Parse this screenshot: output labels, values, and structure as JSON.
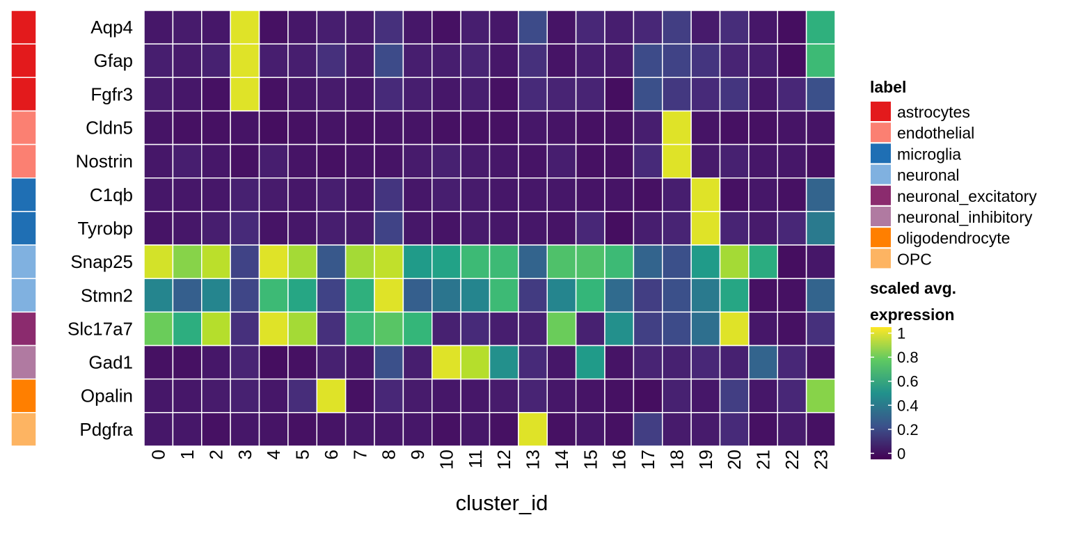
{
  "chart_data": {
    "type": "heatmap",
    "title": "",
    "xlabel": "cluster_id",
    "ylabel": "",
    "x": [
      "0",
      "1",
      "2",
      "3",
      "4",
      "5",
      "6",
      "7",
      "8",
      "9",
      "10",
      "11",
      "12",
      "13",
      "14",
      "15",
      "16",
      "17",
      "18",
      "19",
      "20",
      "21",
      "22",
      "23"
    ],
    "y": [
      "Aqp4",
      "Gfap",
      "Fgfr3",
      "Cldn5",
      "Nostrin",
      "C1qb",
      "Tyrobp",
      "Snap25",
      "Stmn2",
      "Slc17a7",
      "Gad1",
      "Opalin",
      "Pdgfra"
    ],
    "row_labels": [
      "astrocytes",
      "astrocytes",
      "astrocytes",
      "endothelial",
      "endothelial",
      "microglia",
      "microglia",
      "neuronal",
      "neuronal",
      "neuronal_excitatory",
      "neuronal_inhibitory",
      "oligodendrocyte",
      "OPC"
    ],
    "values": [
      [
        0.02,
        0.03,
        0.02,
        1.0,
        0.0,
        0.02,
        0.04,
        0.03,
        0.1,
        0.02,
        0.0,
        0.04,
        0.02,
        0.2,
        0.01,
        0.07,
        0.04,
        0.07,
        0.15,
        0.03,
        0.09,
        0.02,
        -0.01,
        0.65
      ],
      [
        0.04,
        0.03,
        0.05,
        1.0,
        0.04,
        0.04,
        0.1,
        0.03,
        0.2,
        0.04,
        0.04,
        0.06,
        0.02,
        0.1,
        0.01,
        0.04,
        0.03,
        0.2,
        0.17,
        0.12,
        0.06,
        0.04,
        -0.01,
        0.7
      ],
      [
        0.03,
        0.02,
        0.0,
        1.0,
        0.0,
        0.02,
        0.03,
        0.02,
        0.08,
        0.04,
        0.02,
        0.04,
        0.0,
        0.08,
        0.06,
        0.06,
        -0.01,
        0.22,
        0.13,
        0.08,
        0.12,
        0.02,
        0.07,
        0.22
      ],
      [
        0.01,
        0.0,
        0.0,
        0.01,
        -0.01,
        0.0,
        0.01,
        0.0,
        0.01,
        0.01,
        0.0,
        0.0,
        0.0,
        0.02,
        0.01,
        0.0,
        0.0,
        0.04,
        1.0,
        0.01,
        0.0,
        0.0,
        0.01,
        0.01
      ],
      [
        0.02,
        0.04,
        0.02,
        0.0,
        0.04,
        0.01,
        0.0,
        0.01,
        0.01,
        0.03,
        0.05,
        0.03,
        0.02,
        0.01,
        0.04,
        0.0,
        0.0,
        0.08,
        1.0,
        0.03,
        0.05,
        0.02,
        0.02,
        0.0
      ],
      [
        0.02,
        0.02,
        0.02,
        0.05,
        0.03,
        0.02,
        0.04,
        0.02,
        0.12,
        0.02,
        0.04,
        0.03,
        0.02,
        0.02,
        0.02,
        0.01,
        0.01,
        0.0,
        0.04,
        1.0,
        0.0,
        0.02,
        0.0,
        0.3
      ],
      [
        0.01,
        0.02,
        0.04,
        0.08,
        0.01,
        0.02,
        0.04,
        0.03,
        0.17,
        0.02,
        0.01,
        0.03,
        0.02,
        0.02,
        0.01,
        0.07,
        -0.01,
        0.04,
        0.06,
        1.0,
        0.06,
        0.03,
        0.07,
        0.4
      ],
      [
        0.98,
        0.85,
        0.94,
        0.17,
        1.0,
        0.9,
        0.25,
        0.9,
        0.95,
        0.55,
        0.58,
        0.7,
        0.7,
        0.3,
        0.74,
        0.74,
        0.7,
        0.3,
        0.22,
        0.55,
        0.9,
        0.63,
        -0.01,
        0.02
      ],
      [
        0.45,
        0.28,
        0.45,
        0.18,
        0.7,
        0.6,
        0.17,
        0.65,
        1.0,
        0.28,
        0.38,
        0.45,
        0.7,
        0.14,
        0.45,
        0.68,
        0.33,
        0.15,
        0.22,
        0.4,
        0.6,
        0.0,
        0.0,
        0.3
      ],
      [
        0.8,
        0.64,
        0.93,
        0.1,
        1.0,
        0.9,
        0.1,
        0.7,
        0.76,
        0.68,
        0.05,
        0.08,
        0.04,
        0.05,
        0.8,
        0.05,
        0.5,
        0.16,
        0.2,
        0.35,
        1.0,
        0.02,
        0.0,
        0.1
      ],
      [
        0.0,
        0.0,
        0.02,
        0.06,
        -0.01,
        0.0,
        0.05,
        0.02,
        0.22,
        0.04,
        1.0,
        0.93,
        0.5,
        0.08,
        0.02,
        0.55,
        0.01,
        0.06,
        0.05,
        0.07,
        0.05,
        0.3,
        0.07,
        0.01
      ],
      [
        0.02,
        0.02,
        0.03,
        0.05,
        0.02,
        0.09,
        1.0,
        0.0,
        0.07,
        0.03,
        0.02,
        0.02,
        0.03,
        0.06,
        0.02,
        0.01,
        0.0,
        -0.01,
        0.05,
        0.02,
        0.15,
        0.02,
        0.07,
        0.85
      ],
      [
        0.02,
        0.02,
        0.0,
        0.02,
        0.01,
        0.0,
        0.01,
        0.02,
        0.02,
        0.02,
        0.0,
        0.02,
        0.0,
        1.0,
        0.0,
        0.02,
        0.0,
        0.15,
        0.03,
        0.03,
        0.08,
        0.0,
        0.03,
        0.0
      ]
    ],
    "colorbar": {
      "title_lines": [
        "scaled avg.",
        "expression"
      ],
      "ticks": [
        "0",
        "0.2",
        "0.4",
        "0.6",
        "0.8",
        "1"
      ],
      "range": [
        -0.05,
        1.05
      ]
    },
    "legend": {
      "title": "label",
      "position": "right",
      "items": [
        {
          "label": "astrocytes",
          "color": "#E31A1C"
        },
        {
          "label": "endothelial",
          "color": "#FB8072"
        },
        {
          "label": "microglia",
          "color": "#1F6FB4"
        },
        {
          "label": "neuronal",
          "color": "#80B1E0"
        },
        {
          "label": "neuronal_excitatory",
          "color": "#8B2B6E"
        },
        {
          "label": "neuronal_inhibitory",
          "color": "#B07AA1"
        },
        {
          "label": "oligodendrocyte",
          "color": "#FF7F00"
        },
        {
          "label": "OPC",
          "color": "#FDB462"
        }
      ]
    },
    "colormap": "viridis",
    "grid": true
  }
}
